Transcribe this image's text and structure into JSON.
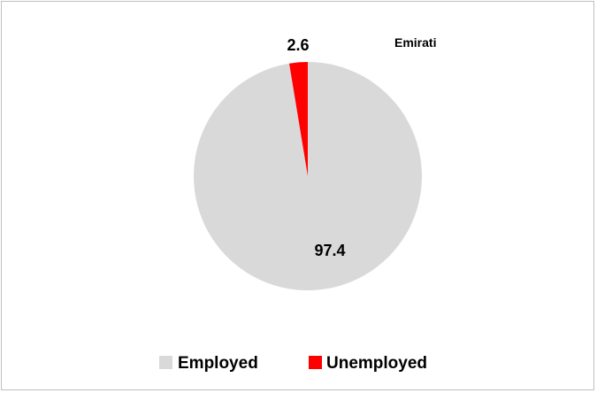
{
  "chart_data": {
    "type": "pie",
    "title": "Emirati",
    "categories": [
      "Employed",
      "Unemployed"
    ],
    "values": [
      97.4,
      2.6
    ],
    "data_labels": [
      "97.4",
      "2.6"
    ],
    "colors": [
      "#d9d9d9",
      "#ff0000"
    ],
    "legend_position": "bottom",
    "start": "top",
    "direction": "counter-clockwise"
  }
}
